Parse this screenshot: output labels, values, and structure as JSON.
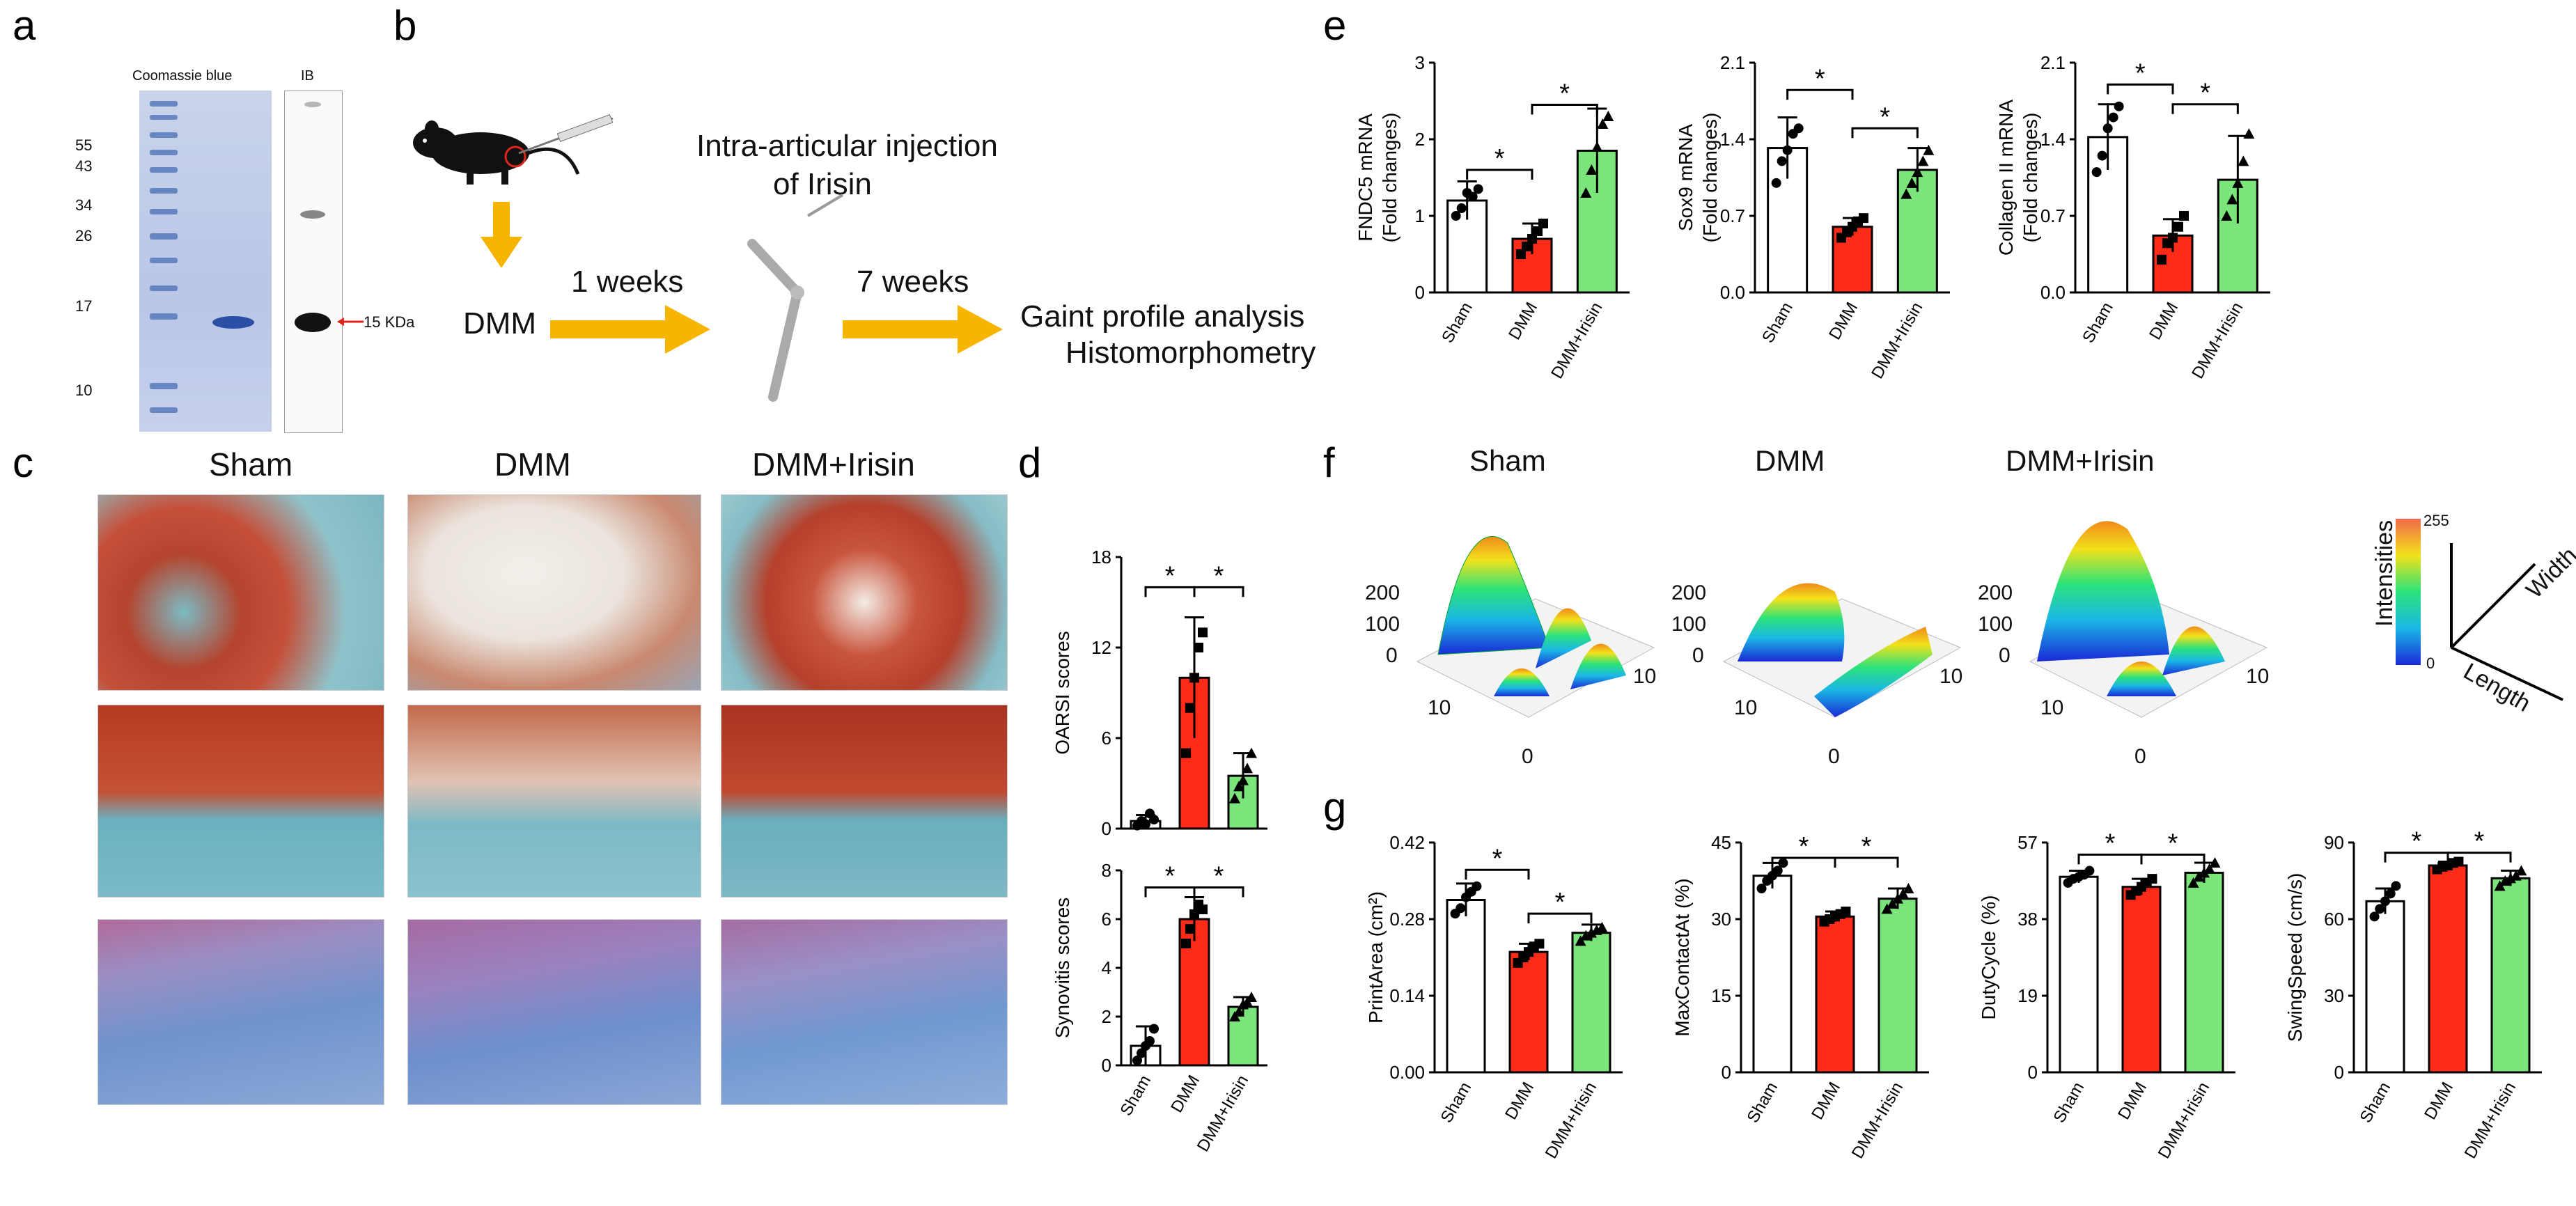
{
  "panel_labels": {
    "a": "a",
    "b": "b",
    "c": "c",
    "d": "d",
    "e": "e",
    "f": "f",
    "g": "g"
  },
  "gel": {
    "lane_labels": [
      "Coomassie blue",
      "IB"
    ],
    "markers": [
      "55",
      "43",
      "34",
      "26",
      "17",
      "10"
    ],
    "band_label": "15 KDa"
  },
  "schematic": {
    "injection_text_1": "Intra-articular injection",
    "injection_text_2": "of Irisin",
    "model": "DMM",
    "time_1": "1 weeks",
    "time_2": "7 weeks",
    "outcome_1": "Gaint profile analysis",
    "outcome_2": "Histomorphometry"
  },
  "histology": {
    "columns": [
      "Sham",
      "DMM",
      "DMM+Irisin"
    ]
  },
  "gait_3d": {
    "columns": [
      "Sham",
      "DMM",
      "DMM+Irisin"
    ],
    "z_ticks": [
      "200",
      "100",
      "0"
    ],
    "x_ticks": [
      "10",
      "0"
    ],
    "y_ticks": [
      "10"
    ],
    "colorbar_max": "255",
    "colorbar_min": "0",
    "axis_labels": [
      "Intensities",
      "Width",
      "Length"
    ]
  },
  "colors": {
    "sham": "#ffffff",
    "dmm": "#ff2a17",
    "irisin": "#7be57b",
    "arrow": "#f7b500",
    "marker_red": "#e0261c"
  },
  "chart_data": [
    {
      "id": "d1",
      "type": "bar",
      "categories": [
        "Sham",
        "DMM",
        "DMM+Irisin"
      ],
      "values": [
        0.5,
        10,
        3.5
      ],
      "err": [
        0.4,
        4,
        1.5
      ],
      "points": [
        [
          0.2,
          0.5,
          0.3,
          1.0,
          0.6
        ],
        [
          5,
          8,
          10,
          12,
          13
        ],
        [
          2,
          2.8,
          3.2,
          4.0,
          5.0
        ]
      ],
      "ylabel": "OARSI scores",
      "ylim": [
        0,
        18
      ],
      "yticks": [
        "0",
        "6",
        "12",
        "18"
      ],
      "sig": [
        {
          "from": 0,
          "to": 1,
          "y": 16,
          "label": "*"
        },
        {
          "from": 1,
          "to": 2,
          "y": 16,
          "label": "*"
        }
      ],
      "show_xlabels": false
    },
    {
      "id": "d2",
      "type": "bar",
      "categories": [
        "Sham",
        "DMM",
        "DMM+Irisin"
      ],
      "values": [
        0.8,
        6.0,
        2.4
      ],
      "err": [
        0.8,
        0.9,
        0.4
      ],
      "points": [
        [
          0.2,
          0.5,
          0.8,
          1.0,
          1.5
        ],
        [
          5.0,
          5.6,
          6.2,
          6.6,
          6.4
        ],
        [
          2.0,
          2.2,
          2.5,
          2.6,
          2.8
        ]
      ],
      "ylabel": "Synovitis scores",
      "ylim": [
        0,
        8
      ],
      "yticks": [
        "0",
        "2",
        "4",
        "6",
        "8"
      ],
      "sig": [
        {
          "from": 0,
          "to": 1,
          "y": 7.3,
          "label": "*"
        },
        {
          "from": 1,
          "to": 2,
          "y": 7.3,
          "label": "*"
        }
      ],
      "show_xlabels": true
    },
    {
      "id": "e1",
      "type": "bar",
      "categories": [
        "Sham",
        "DMM",
        "DMM+Irisin"
      ],
      "values": [
        1.2,
        0.7,
        1.85
      ],
      "err": [
        0.25,
        0.2,
        0.55
      ],
      "points": [
        [
          1.0,
          1.1,
          1.3,
          1.25,
          1.35
        ],
        [
          0.5,
          0.6,
          0.7,
          0.8,
          0.9
        ],
        [
          1.3,
          1.6,
          1.9,
          2.2,
          2.3
        ]
      ],
      "ylabel": "FNDC5 mRNA",
      "ylabel2": "(Fold changes)",
      "ylim": [
        0,
        3
      ],
      "yticks": [
        "0",
        "1",
        "2",
        "3"
      ],
      "sig": [
        {
          "from": 0,
          "to": 1,
          "y": 1.6,
          "label": "*"
        },
        {
          "from": 1,
          "to": 2,
          "y": 2.45,
          "label": "*"
        }
      ],
      "show_xlabels": true
    },
    {
      "id": "e2",
      "type": "bar",
      "categories": [
        "Sham",
        "DMM",
        "DMM+Irisin"
      ],
      "values": [
        1.32,
        0.6,
        1.12
      ],
      "err": [
        0.28,
        0.08,
        0.2
      ],
      "points": [
        [
          1.0,
          1.2,
          1.3,
          1.45,
          1.5
        ],
        [
          0.5,
          0.55,
          0.6,
          0.65,
          0.68
        ],
        [
          0.9,
          1.0,
          1.1,
          1.2,
          1.3
        ]
      ],
      "ylabel": "Sox9 mRNA",
      "ylabel2": "(Fold changes)",
      "ylim": [
        0,
        2.1
      ],
      "yticks": [
        "0.0",
        "0.7",
        "1.4",
        "2.1"
      ],
      "sig": [
        {
          "from": 0,
          "to": 1,
          "y": 1.85,
          "label": "*"
        },
        {
          "from": 1,
          "to": 2,
          "y": 1.5,
          "label": "*"
        }
      ],
      "show_xlabels": true
    },
    {
      "id": "e3",
      "type": "bar",
      "categories": [
        "Sham",
        "DMM",
        "DMM+Irisin"
      ],
      "values": [
        1.42,
        0.52,
        1.03
      ],
      "err": [
        0.3,
        0.15,
        0.4
      ],
      "points": [
        [
          1.1,
          1.25,
          1.5,
          1.6,
          1.7
        ],
        [
          0.3,
          0.45,
          0.5,
          0.6,
          0.7
        ],
        [
          0.7,
          0.85,
          1.0,
          1.2,
          1.45
        ]
      ],
      "ylabel": "Collagen II mRNA",
      "ylabel2": "(Fold changes)",
      "ylim": [
        0,
        2.1
      ],
      "yticks": [
        "0.0",
        "0.7",
        "1.4",
        "2.1"
      ],
      "sig": [
        {
          "from": 0,
          "to": 1,
          "y": 1.9,
          "label": "*"
        },
        {
          "from": 1,
          "to": 2,
          "y": 1.72,
          "label": "*"
        }
      ],
      "show_xlabels": true
    },
    {
      "id": "g1",
      "type": "bar",
      "categories": [
        "Sham",
        "DMM",
        "DMM+Irisin"
      ],
      "values": [
        0.315,
        0.22,
        0.255
      ],
      "err": [
        0.03,
        0.015,
        0.015
      ],
      "points": [
        [
          0.29,
          0.3,
          0.32,
          0.33,
          0.34
        ],
        [
          0.2,
          0.21,
          0.22,
          0.23,
          0.235
        ],
        [
          0.24,
          0.25,
          0.255,
          0.26,
          0.265
        ]
      ],
      "ylabel": "PrintArea (cm²)",
      "ylim": [
        0,
        0.42
      ],
      "yticks": [
        "0.00",
        "0.14",
        "0.28",
        "0.42"
      ],
      "sig": [
        {
          "from": 0,
          "to": 1,
          "y": 0.37,
          "label": "*"
        },
        {
          "from": 1,
          "to": 2,
          "y": 0.29,
          "label": "*"
        }
      ],
      "show_xlabels": true
    },
    {
      "id": "g2",
      "type": "bar",
      "categories": [
        "Sham",
        "DMM",
        "DMM+Irisin"
      ],
      "values": [
        38.5,
        30.5,
        34
      ],
      "err": [
        2.5,
        1.0,
        2.0
      ],
      "points": [
        [
          36,
          37.5,
          38.5,
          39.5,
          41
        ],
        [
          29.5,
          30,
          30.5,
          31,
          31.5
        ],
        [
          32,
          33,
          34,
          35,
          36
        ]
      ],
      "ylabel": "MaxContactAt (%)",
      "ylim": [
        0,
        45
      ],
      "yticks": [
        "0",
        "15",
        "30",
        "45"
      ],
      "sig": [
        {
          "from": 0,
          "to": 1,
          "y": 42,
          "label": "*"
        },
        {
          "from": 1,
          "to": 2,
          "y": 42,
          "label": "*"
        }
      ],
      "show_xlabels": true
    },
    {
      "id": "g3",
      "type": "bar",
      "categories": [
        "Sham",
        "DMM",
        "DMM+Irisin"
      ],
      "values": [
        48.5,
        46,
        49.5
      ],
      "err": [
        1.5,
        2.0,
        2.5
      ],
      "points": [
        [
          47,
          48,
          48.5,
          49,
          50
        ],
        [
          44,
          45,
          46,
          47,
          48
        ],
        [
          47,
          48.5,
          49.5,
          50.5,
          52
        ]
      ],
      "ylabel": "DutyCycle (%)",
      "ylim": [
        0,
        57
      ],
      "yticks": [
        "0",
        "19",
        "38",
        "57"
      ],
      "sig": [
        {
          "from": 0,
          "to": 1,
          "y": 54,
          "label": "*"
        },
        {
          "from": 1,
          "to": 2,
          "y": 54,
          "label": "*"
        }
      ],
      "show_xlabels": true
    },
    {
      "id": "g4",
      "type": "bar",
      "categories": [
        "Sham",
        "DMM",
        "DMM+Irisin"
      ],
      "values": [
        67,
        81,
        76
      ],
      "err": [
        5,
        1.5,
        3
      ],
      "points": [
        [
          61,
          64,
          67,
          70,
          73
        ],
        [
          79.5,
          80.5,
          81,
          82,
          82.5
        ],
        [
          73,
          75,
          76,
          77,
          79
        ]
      ],
      "ylabel": "SwingSpeed (cm/s)",
      "ylim": [
        0,
        90
      ],
      "yticks": [
        "0",
        "30",
        "60",
        "90"
      ],
      "sig": [
        {
          "from": 0,
          "to": 1,
          "y": 86,
          "label": "*"
        },
        {
          "from": 1,
          "to": 2,
          "y": 86,
          "label": "*"
        }
      ],
      "show_xlabels": true
    }
  ]
}
